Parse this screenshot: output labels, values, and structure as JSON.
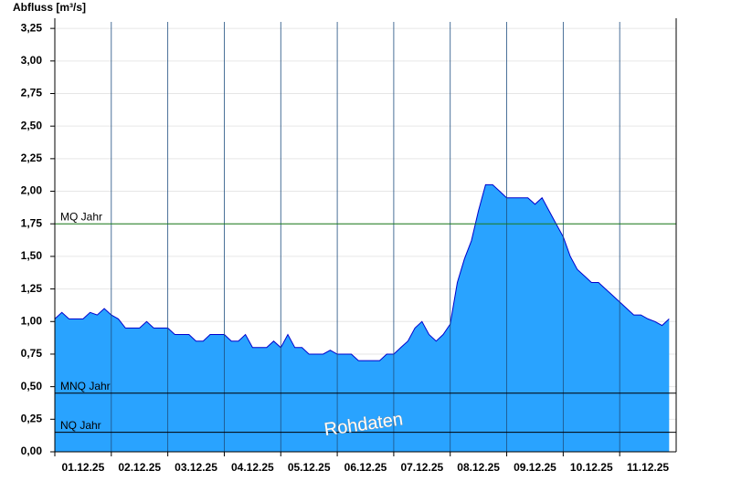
{
  "chart_data": {
    "type": "area",
    "y_axis_label": "Abfluss [m³/s]",
    "annotation": "Rohdaten",
    "categories": [
      "01.12.25",
      "02.12.25",
      "03.12.25",
      "04.12.25",
      "05.12.25",
      "06.12.25",
      "07.12.25",
      "08.12.25",
      "09.12.25",
      "10.12.25",
      "11.12.25"
    ],
    "x": [
      0,
      3,
      6,
      9,
      12,
      15,
      18,
      21,
      24,
      27,
      30,
      33,
      36,
      39,
      42,
      45,
      48,
      51,
      54,
      57,
      60,
      63,
      66,
      69,
      72,
      75,
      78,
      81,
      84,
      87,
      90,
      93,
      96,
      99,
      102,
      105,
      108,
      111,
      114,
      117,
      120,
      123,
      126,
      129,
      132,
      135,
      138,
      141,
      144,
      147,
      150,
      153,
      156,
      159,
      162,
      165,
      168,
      171,
      174,
      177,
      180,
      183,
      186,
      189,
      192,
      195,
      198,
      201,
      204,
      207,
      210,
      213,
      216,
      219,
      222,
      225,
      228,
      231,
      234,
      237,
      240,
      243,
      246,
      249,
      252,
      255,
      258,
      261
    ],
    "xlim": [
      0,
      264
    ],
    "series": [
      {
        "name": "Abfluss",
        "color": "#29a3ff",
        "line_color": "#0000cc",
        "values": [
          1.02,
          1.07,
          1.02,
          1.02,
          1.02,
          1.07,
          1.05,
          1.1,
          1.05,
          1.02,
          0.95,
          0.95,
          0.95,
          1.0,
          0.95,
          0.95,
          0.95,
          0.9,
          0.9,
          0.9,
          0.85,
          0.85,
          0.9,
          0.9,
          0.9,
          0.85,
          0.85,
          0.9,
          0.8,
          0.8,
          0.8,
          0.85,
          0.8,
          0.9,
          0.8,
          0.8,
          0.75,
          0.75,
          0.75,
          0.78,
          0.75,
          0.75,
          0.75,
          0.7,
          0.7,
          0.7,
          0.7,
          0.75,
          0.75,
          0.8,
          0.85,
          0.95,
          1.0,
          0.9,
          0.85,
          0.9,
          0.98,
          1.3,
          1.48,
          1.62,
          1.85,
          2.05,
          2.05,
          2.0,
          1.95,
          1.95,
          1.95,
          1.95,
          1.9,
          1.95,
          1.85,
          1.75,
          1.65,
          1.5,
          1.4,
          1.35,
          1.3,
          1.3,
          1.25,
          1.2,
          1.15,
          1.1,
          1.05,
          1.05,
          1.02,
          1.0,
          0.97,
          1.02
        ]
      }
    ],
    "reference_lines": [
      {
        "label": "MQ Jahr",
        "value": 1.75,
        "color": "#1a7a1a"
      },
      {
        "label": "MNQ Jahr",
        "value": 0.45,
        "color": "#000000"
      },
      {
        "label": "NQ Jahr",
        "value": 0.15,
        "color": "#000000"
      }
    ],
    "ylim": [
      0,
      3.3
    ],
    "yticks": [
      {
        "value": 0,
        "label": "0,00"
      },
      {
        "value": 0.25,
        "label": "0,25"
      },
      {
        "value": 0.5,
        "label": "0,50"
      },
      {
        "value": 0.75,
        "label": "0,75"
      },
      {
        "value": 1,
        "label": "1,00"
      },
      {
        "value": 1.25,
        "label": "1,25"
      },
      {
        "value": 1.5,
        "label": "1,50"
      },
      {
        "value": 1.75,
        "label": "1,75"
      },
      {
        "value": 2,
        "label": "2,00"
      },
      {
        "value": 2.25,
        "label": "2,25"
      },
      {
        "value": 2.5,
        "label": "2,50"
      },
      {
        "value": 2.75,
        "label": "2,75"
      },
      {
        "value": 3,
        "label": "3,00"
      },
      {
        "value": 3.25,
        "label": "3,25"
      }
    ],
    "grid": true
  }
}
